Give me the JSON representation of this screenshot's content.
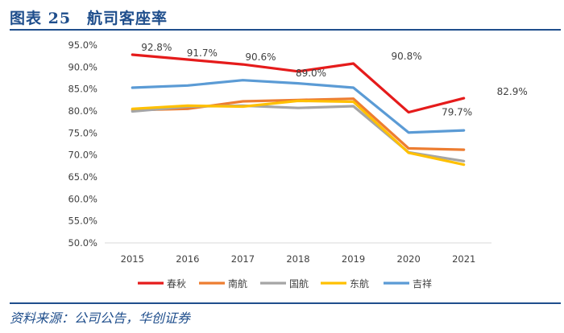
{
  "figure": {
    "title": "图表 25　航司客座率",
    "source": "资料来源：公司公告，华创证券"
  },
  "chart_data": {
    "type": "line",
    "title": "航司客座率",
    "xlabel": "",
    "ylabel": "",
    "ylim": [
      50,
      95
    ],
    "yticks": [
      "50.0%",
      "55.0%",
      "60.0%",
      "65.0%",
      "70.0%",
      "75.0%",
      "80.0%",
      "85.0%",
      "90.0%",
      "95.0%"
    ],
    "categories": [
      "2015",
      "2016",
      "2017",
      "2018",
      "2019",
      "2020",
      "2021"
    ],
    "grid": false,
    "legend_position": "bottom",
    "series": [
      {
        "name": "春秋",
        "color": "#e51b1b",
        "values": [
          92.8,
          91.7,
          90.6,
          89.0,
          90.8,
          79.7,
          82.9
        ],
        "labels": [
          "92.8%",
          "91.7%",
          "90.6%",
          "89.0%",
          "90.8%",
          "79.7%",
          "82.9%"
        ]
      },
      {
        "name": "南航",
        "color": "#ed7d31",
        "values": [
          80.2,
          80.5,
          82.2,
          82.5,
          82.8,
          71.5,
          71.2
        ]
      },
      {
        "name": "国航",
        "color": "#a5a5a5",
        "values": [
          79.9,
          81.0,
          81.2,
          80.7,
          81.1,
          70.6,
          68.6
        ]
      },
      {
        "name": "东航",
        "color": "#ffc000",
        "values": [
          80.5,
          81.2,
          81.0,
          82.3,
          82.1,
          70.5,
          67.8
        ]
      },
      {
        "name": "吉祥",
        "color": "#5b9bd5",
        "values": [
          85.3,
          85.8,
          87.0,
          86.3,
          85.3,
          75.1,
          75.6
        ]
      }
    ]
  }
}
